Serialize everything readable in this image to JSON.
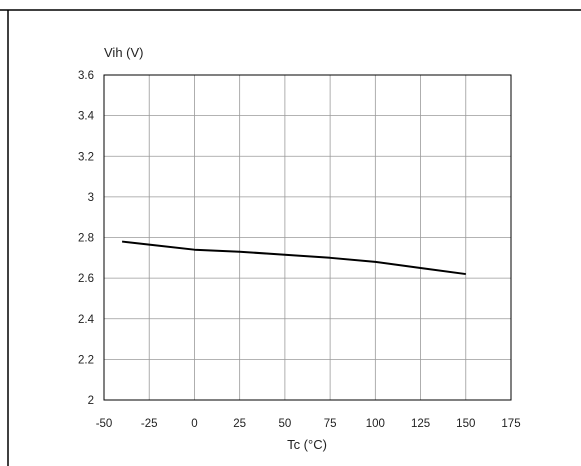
{
  "chart_data": {
    "type": "line",
    "title": "",
    "xlabel": "Tc (°C)",
    "ylabel": "Vih (V)",
    "xlim": [
      -50,
      175
    ],
    "ylim": [
      2,
      3.6
    ],
    "x_ticks": [
      -50,
      -25,
      0,
      25,
      50,
      75,
      100,
      125,
      150,
      175
    ],
    "y_ticks": [
      2,
      2.2,
      2.4,
      2.6,
      2.8,
      3,
      3.2,
      3.4,
      3.6
    ],
    "x_tick_labels": [
      "-50",
      "-25",
      "0",
      "25",
      "50",
      "75",
      "100",
      "125",
      "150",
      "175"
    ],
    "y_tick_labels": [
      "2",
      "2.2",
      "2.4",
      "2.6",
      "2.8",
      "3",
      "3.2",
      "3.4",
      "3.6"
    ],
    "grid": true,
    "legend": "none",
    "series": [
      {
        "x": [
          -40,
          -25,
          0,
          25,
          50,
          75,
          100,
          125,
          150
        ],
        "y": [
          2.78,
          2.765,
          2.74,
          2.73,
          2.715,
          2.7,
          2.68,
          2.65,
          2.62
        ],
        "color": "#000000"
      }
    ]
  }
}
